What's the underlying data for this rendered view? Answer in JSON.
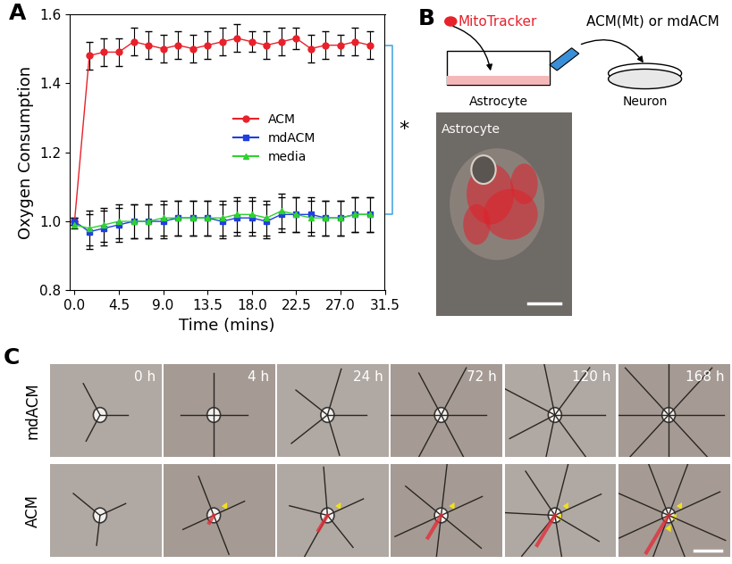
{
  "chart_data": {
    "type": "line",
    "title": "A",
    "x_label": "Time (mins)",
    "y_label": "Oxygen Consumption",
    "x": [
      0,
      1.5,
      3,
      4.5,
      6,
      7.5,
      9,
      10.5,
      12,
      13.5,
      15,
      16.5,
      18,
      19.5,
      21,
      22.5,
      24,
      25.5,
      27,
      28.5,
      30
    ],
    "series": [
      {
        "name": "ACM",
        "color": "#e8212a",
        "marker": "circle",
        "line_style": "solid",
        "values": [
          1.0,
          1.48,
          1.49,
          1.49,
          1.52,
          1.51,
          1.5,
          1.51,
          1.5,
          1.51,
          1.52,
          1.53,
          1.52,
          1.51,
          1.52,
          1.53,
          1.5,
          1.51,
          1.51,
          1.52,
          1.51
        ],
        "errors": [
          0.01,
          0.04,
          0.04,
          0.04,
          0.04,
          0.04,
          0.04,
          0.04,
          0.04,
          0.04,
          0.04,
          0.04,
          0.03,
          0.04,
          0.04,
          0.03,
          0.04,
          0.04,
          0.03,
          0.04,
          0.04
        ]
      },
      {
        "name": "mdACM",
        "color": "#1f3fe0",
        "marker": "square",
        "line_style": "solid",
        "values": [
          1.0,
          0.97,
          0.98,
          0.99,
          1.0,
          1.0,
          1.0,
          1.01,
          1.01,
          1.01,
          1.0,
          1.01,
          1.01,
          1.0,
          1.02,
          1.02,
          1.02,
          1.01,
          1.01,
          1.02,
          1.02
        ],
        "errors": [
          0.01,
          0.05,
          0.05,
          0.05,
          0.05,
          0.05,
          0.05,
          0.05,
          0.05,
          0.05,
          0.05,
          0.05,
          0.05,
          0.05,
          0.05,
          0.05,
          0.05,
          0.05,
          0.05,
          0.05,
          0.05
        ]
      },
      {
        "name": "media",
        "color": "#2fd12f",
        "marker": "triangle",
        "line_style": "solid",
        "values": [
          0.99,
          0.98,
          0.99,
          1.0,
          1.0,
          1.0,
          1.01,
          1.01,
          1.01,
          1.01,
          1.01,
          1.02,
          1.02,
          1.01,
          1.03,
          1.02,
          1.01,
          1.01,
          1.01,
          1.02,
          1.02
        ],
        "errors": [
          0.01,
          0.05,
          0.05,
          0.05,
          0.05,
          0.05,
          0.05,
          0.05,
          0.05,
          0.05,
          0.05,
          0.05,
          0.05,
          0.05,
          0.05,
          0.05,
          0.05,
          0.05,
          0.05,
          0.05,
          0.05
        ]
      }
    ],
    "xlim": [
      -0.5,
      31.5
    ],
    "xticks": [
      {
        "value": 0,
        "label": "0.0"
      },
      4.5,
      {
        "value": 9,
        "label": "9.0"
      },
      13.5,
      {
        "value": 18,
        "label": "18.0"
      },
      22.5,
      {
        "value": 27,
        "label": "27.0"
      },
      31.5
    ],
    "ylim": [
      0.8,
      1.6
    ],
    "yticks": [
      0.8,
      {
        "value": 1,
        "label": "1.0"
      },
      1.2,
      1.4,
      1.6
    ],
    "legend": "center",
    "grid": false,
    "annotations": [
      "*"
    ]
  },
  "panel_B": {
    "label": "B",
    "dye": "MitoTracker",
    "transfer": "ACM(Mt) or mdACM",
    "source": "Astrocyte",
    "target": "Neuron",
    "image_label": "Astrocyte"
  },
  "panel_C": {
    "label": "C",
    "rows": [
      "mdACM",
      "ACM"
    ],
    "columns": [
      "0 h",
      "4 h",
      "24 h",
      "72 h",
      "120 h",
      "168 h"
    ]
  }
}
